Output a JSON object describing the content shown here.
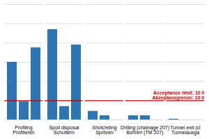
{
  "chart_data": {
    "type": "bar",
    "categories": [
      "Profiling\nProfilieren",
      "Spoil disposal\nSchuttern",
      "Shotcreting\nSpritzen",
      "Drilling (chainage 207)\nBohreri (TM 207)",
      "Tunnel exit (cl\nTunnelausga"
    ],
    "series": [
      {
        "color": "#2e75b6",
        "values": [
          30000,
          47000,
          4500,
          2200,
          400
        ]
      },
      {
        "color": "#2e75b6",
        "values": [
          9500,
          7000,
          2200,
          2200,
          null
        ]
      },
      {
        "color": "#2e75b6",
        "values": [
          37500,
          39000,
          null,
          null,
          null
        ]
      }
    ],
    "ylim": [
      0,
      60000
    ],
    "yticks": [
      0,
      10000,
      20000,
      30000,
      40000,
      50000,
      60000
    ],
    "grid": true,
    "tick_labels": "x",
    "annotations": [
      {
        "y": 10000,
        "color": "#c00000",
        "texts": [
          "Acceptance limit: 10 0",
          "Akzeptanzgrenze: 10 0"
        ]
      }
    ]
  }
}
